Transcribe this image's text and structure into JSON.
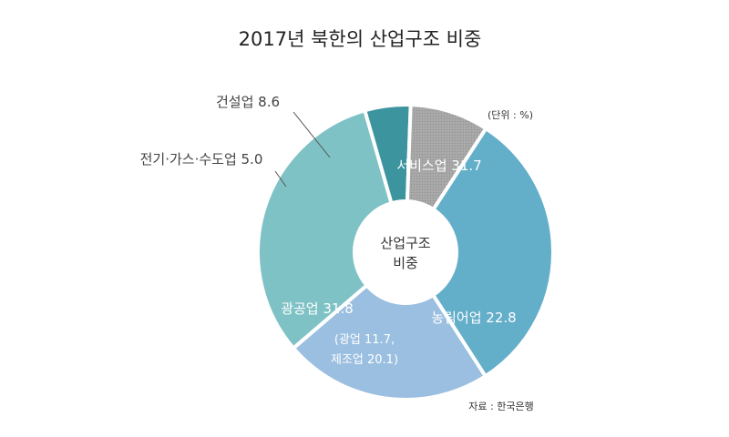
{
  "chart_data": {
    "type": "pie",
    "title": "2017년 북한의 산업구조 비중",
    "unit_note": "(단위 : %)",
    "source": "자료 : 한국은행",
    "center_label": [
      "산업구조",
      "비중"
    ],
    "slices": [
      {
        "name": "서비스업",
        "value": 31.7,
        "label": "서비스업 31.7",
        "color": "#63aec9"
      },
      {
        "name": "농림어업",
        "value": 22.8,
        "label": "농림어업 22.8",
        "color": "#9bbfe0"
      },
      {
        "name": "광공업",
        "value": 31.8,
        "label": "광공업 31.8",
        "sub_labels": [
          "(광업 11.7,",
          "제조업 20.1)"
        ],
        "color": "#7fc2c6"
      },
      {
        "name": "전기·가스·수도업",
        "value": 5.0,
        "label": "전기·가스·수도업 5.0",
        "color": "#3c949e"
      },
      {
        "name": "건설업",
        "value": 8.6,
        "label": "건설업 8.6",
        "color": "#a8a8a8"
      }
    ]
  }
}
